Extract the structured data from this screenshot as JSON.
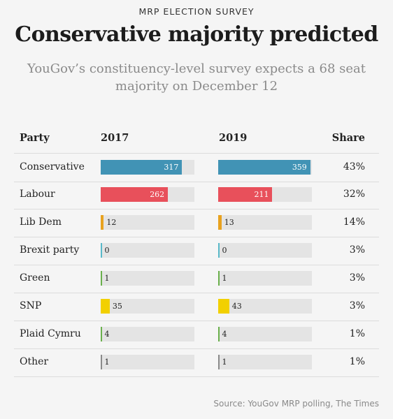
{
  "kicker": "MRP ELECTION SURVEY",
  "title": "Conservative majority predicted",
  "subtitle": "YouGov’s constituency-level survey expects a 68 seat majority on December 12",
  "source": "Source: YouGov MRP polling, The Times",
  "headers": {
    "party": "Party",
    "y2017": "2017",
    "y2019": "2019",
    "share": "Share"
  },
  "colors": {
    "Conservative": "#4193b5",
    "Labour": "#e8505b",
    "Lib Dem": "#e8a21f",
    "Brexit party": "#59b9c9",
    "Green": "#6ab04c",
    "SNP": "#f2d000",
    "Plaid Cymru": "#6ab04c",
    "Other": "#8a8a8a",
    "track": "#e4e4e4"
  },
  "chart_data": {
    "type": "bar",
    "categories": [
      "Conservative",
      "Labour",
      "Lib Dem",
      "Brexit party",
      "Green",
      "SNP",
      "Plaid Cymru",
      "Other"
    ],
    "series": [
      {
        "name": "2017",
        "values": [
          317,
          262,
          12,
          0,
          1,
          35,
          4,
          1
        ]
      },
      {
        "name": "2019",
        "values": [
          359,
          211,
          13,
          0,
          1,
          43,
          4,
          1
        ]
      }
    ],
    "share": [
      "43%",
      "32%",
      "14%",
      "3%",
      "3%",
      "3%",
      "1%",
      "1%"
    ],
    "xlim": [
      0,
      365
    ]
  }
}
